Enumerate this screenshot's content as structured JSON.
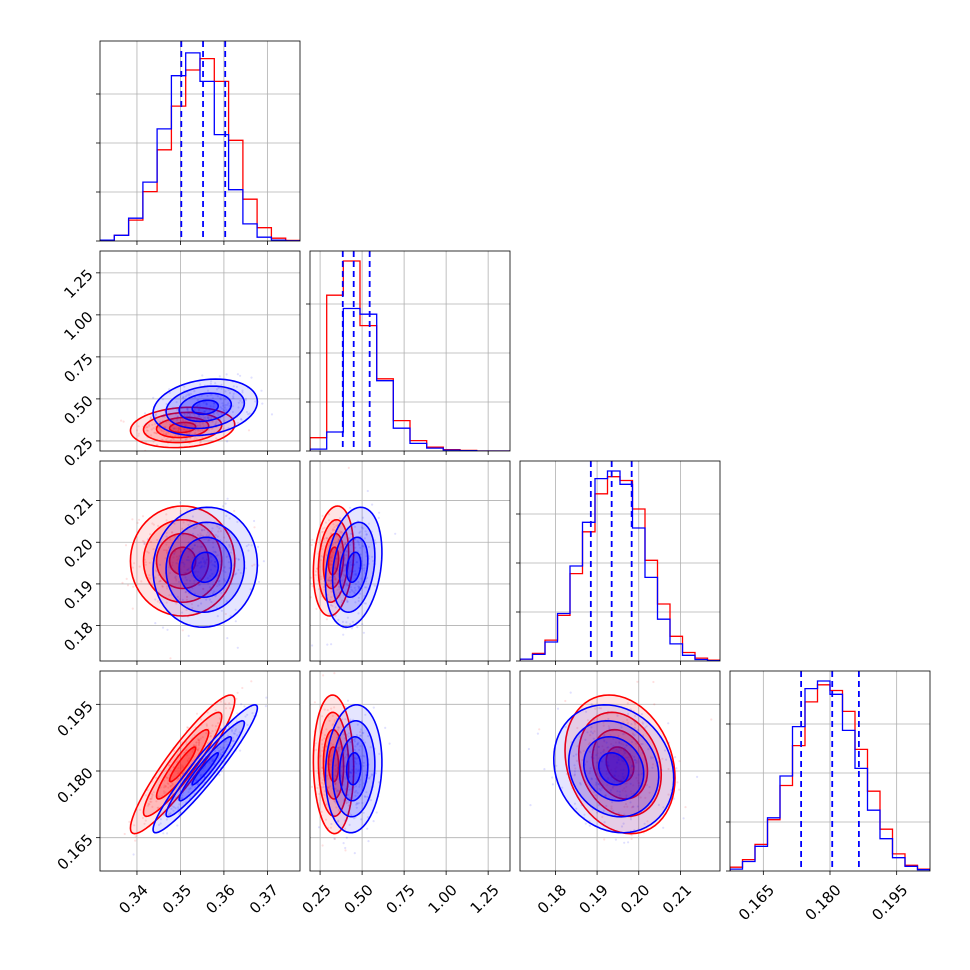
{
  "colors": {
    "red": "#ff0000",
    "blue": "#0000ff"
  },
  "chart_data": {
    "type": "corner",
    "grid": true,
    "series": [
      {
        "name": "",
        "color": "#ff0000",
        "median": [
          0.3505,
          0.33,
          0.1955,
          0.1815
        ],
        "sigma": [
          0.005,
          0.05,
          0.0055,
          0.0065
        ],
        "corr": [
          [
            1,
            0,
            0,
            0
          ],
          [
            0.15,
            1,
            0,
            0
          ],
          [
            0.0,
            0.2,
            1,
            0
          ],
          [
            0.92,
            -0.05,
            -0.2,
            1
          ]
        ],
        "hist": [
          [
            0.004,
            0.03,
            0.11,
            0.26,
            0.48,
            0.71,
            0.9,
            0.96,
            0.84,
            0.53,
            0.22,
            0.07,
            0.015,
            0.003
          ],
          [
            0.07,
            0.82,
            1.0,
            0.66,
            0.38,
            0.16,
            0.055,
            0.02,
            0.007,
            0.003,
            0.0,
            0.0
          ],
          [
            0.01,
            0.04,
            0.11,
            0.24,
            0.46,
            0.68,
            0.88,
            0.97,
            0.95,
            0.8,
            0.53,
            0.3,
            0.13,
            0.045,
            0.015,
            0.004
          ],
          [
            0.02,
            0.06,
            0.14,
            0.27,
            0.45,
            0.66,
            0.89,
            0.98,
            0.95,
            0.84,
            0.64,
            0.42,
            0.22,
            0.09,
            0.03,
            0.01
          ]
        ]
      },
      {
        "name": "",
        "color": "#0000ff",
        "median": [
          0.3557,
          0.45,
          0.194,
          0.1805
        ],
        "sigma": [
          0.005,
          0.07,
          0.006,
          0.006
        ],
        "corr": [
          [
            1,
            0,
            0,
            0
          ],
          [
            0.2,
            1,
            0,
            0
          ],
          [
            0.05,
            0.25,
            1,
            0
          ],
          [
            0.95,
            0.1,
            -0.15,
            1
          ]
        ],
        "hist": [
          [
            0.004,
            0.03,
            0.12,
            0.31,
            0.59,
            0.87,
            0.99,
            0.84,
            0.56,
            0.27,
            0.09,
            0.02,
            0.004,
            0.001
          ],
          [
            0.01,
            0.1,
            0.75,
            0.72,
            0.37,
            0.12,
            0.04,
            0.015,
            0.005,
            0.002,
            0.0,
            0.0
          ],
          [
            0.01,
            0.035,
            0.1,
            0.25,
            0.5,
            0.73,
            0.96,
            1.0,
            0.93,
            0.7,
            0.44,
            0.22,
            0.09,
            0.03,
            0.008,
            0.002
          ],
          [
            0.01,
            0.05,
            0.13,
            0.28,
            0.5,
            0.76,
            0.96,
            1.0,
            0.93,
            0.74,
            0.54,
            0.32,
            0.17,
            0.07,
            0.025,
            0.007
          ]
        ]
      }
    ],
    "quantile_lines": [
      [
        0.3502,
        0.3552,
        0.3603
      ],
      [
        0.385,
        0.45,
        0.545
      ],
      [
        0.1885,
        0.1935,
        0.1983
      ],
      [
        0.1735,
        0.1805,
        0.1865
      ]
    ],
    "axes": [
      {
        "range": [
          0.3315,
          0.3775
        ],
        "ticks": [
          0.34,
          0.35,
          0.36,
          0.37
        ],
        "tick_labels": [
          "0.34",
          "0.35",
          "0.36",
          "0.37"
        ]
      },
      {
        "range": [
          0.19,
          1.38
        ],
        "ticks": [
          0.25,
          0.5,
          0.75,
          1.0,
          1.25
        ],
        "tick_labels": [
          "0.25",
          "0.50",
          "0.75",
          "1.00",
          "1.25"
        ]
      },
      {
        "range": [
          0.1715,
          0.2195
        ],
        "ticks": [
          0.18,
          0.19,
          0.2,
          0.21
        ],
        "tick_labels": [
          "0.18",
          "0.19",
          "0.20",
          "0.21"
        ]
      },
      {
        "range": [
          0.1575,
          0.2025
        ],
        "ticks": [
          0.165,
          0.18,
          0.195
        ],
        "tick_labels": [
          "0.165",
          "0.180",
          "0.195"
        ]
      }
    ]
  }
}
